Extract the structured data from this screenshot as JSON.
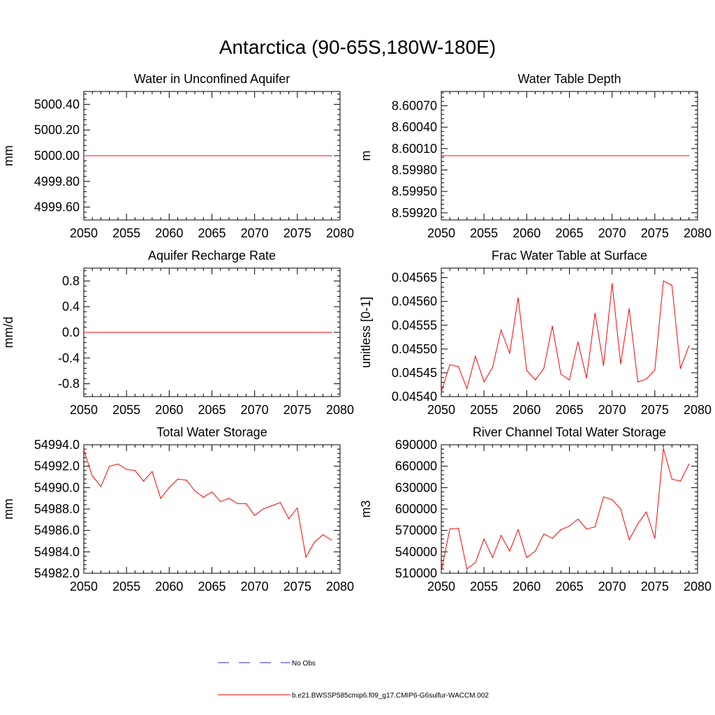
{
  "page_title": "Antarctica (90-65S,180W-180E)",
  "colors": {
    "model": "#ff0000",
    "obs": "#2a2ad0",
    "axis": "#000000"
  },
  "legend": {
    "obs_label": "No Obs",
    "model_label": "b.e21.BWSSP585cmip6.f09_g17.CMIP6-G6sulfur-WACCM.002"
  },
  "chart_data": [
    {
      "type": "line",
      "title": "Water in Unconfined Aquifer",
      "ylabel": "mm",
      "xlim": [
        2050,
        2080
      ],
      "ylim": [
        4999.5,
        5000.5
      ],
      "xticks": [
        2050,
        2055,
        2060,
        2065,
        2070,
        2075,
        2080
      ],
      "yticks": [
        4999.6,
        4999.8,
        5000.0,
        5000.2,
        5000.4
      ],
      "ytick_labels": [
        "4999.60",
        "4999.80",
        "5000.00",
        "5000.20",
        "5000.40"
      ],
      "x": [
        2050,
        2079
      ],
      "values": [
        5000.0,
        5000.0
      ]
    },
    {
      "type": "line",
      "title": "Water Table Depth",
      "ylabel": "m",
      "xlim": [
        2050,
        2080
      ],
      "ylim": [
        8.5991,
        8.6009
      ],
      "xticks": [
        2050,
        2055,
        2060,
        2065,
        2070,
        2075,
        2080
      ],
      "yticks": [
        8.5992,
        8.5995,
        8.5998,
        8.6001,
        8.6004,
        8.6007
      ],
      "ytick_labels": [
        "8.59920",
        "8.59950",
        "8.59980",
        "8.60010",
        "8.60040",
        "8.60070"
      ],
      "x": [
        2050,
        2079
      ],
      "values": [
        8.6,
        8.6
      ]
    },
    {
      "type": "line",
      "title": "Aquifer Recharge Rate",
      "ylabel": "mm/d",
      "xlim": [
        2050,
        2080
      ],
      "ylim": [
        -1.0,
        1.0
      ],
      "xticks": [
        2050,
        2055,
        2060,
        2065,
        2070,
        2075,
        2080
      ],
      "yticks": [
        -0.8,
        -0.4,
        0.0,
        0.4,
        0.8
      ],
      "ytick_labels": [
        "-0.8",
        "-0.4",
        "0.0",
        "0.4",
        "0.8"
      ],
      "x": [
        2050,
        2079
      ],
      "values": [
        0.0,
        0.0
      ]
    },
    {
      "type": "line",
      "title": "Frac Water Table at Surface",
      "ylabel": "unitless [0-1]",
      "xlim": [
        2050,
        2080
      ],
      "ylim": [
        0.0454,
        0.04567
      ],
      "xticks": [
        2050,
        2055,
        2060,
        2065,
        2070,
        2075,
        2080
      ],
      "yticks": [
        0.0454,
        0.04545,
        0.0455,
        0.04555,
        0.0456,
        0.04565
      ],
      "ytick_labels": [
        "0.04540",
        "0.04545",
        "0.04550",
        "0.04555",
        "0.04560",
        "0.04565"
      ],
      "x": [
        2050,
        2051,
        2052,
        2053,
        2054,
        2055,
        2056,
        2057,
        2058,
        2059,
        2060,
        2061,
        2062,
        2063,
        2064,
        2065,
        2066,
        2067,
        2068,
        2069,
        2070,
        2071,
        2072,
        2073,
        2074,
        2075,
        2076,
        2077,
        2078,
        2079
      ],
      "values": [
        0.04541,
        0.045467,
        0.045463,
        0.045417,
        0.045485,
        0.045431,
        0.045461,
        0.04554,
        0.045491,
        0.045608,
        0.045455,
        0.045435,
        0.045459,
        0.045548,
        0.045447,
        0.045435,
        0.045515,
        0.045439,
        0.045575,
        0.045465,
        0.045638,
        0.045469,
        0.045585,
        0.045431,
        0.045437,
        0.045456,
        0.045643,
        0.045634,
        0.045459,
        0.045507
      ]
    },
    {
      "type": "line",
      "title": "Total Water Storage",
      "ylabel": "mm",
      "xlim": [
        2050,
        2080
      ],
      "ylim": [
        54982.0,
        54994.0
      ],
      "xticks": [
        2050,
        2055,
        2060,
        2065,
        2070,
        2075,
        2080
      ],
      "yticks": [
        54982.0,
        54984.0,
        54986.0,
        54988.0,
        54990.0,
        54992.0,
        54994.0
      ],
      "ytick_labels": [
        "54982.0",
        "54984.0",
        "54986.0",
        "54988.0",
        "54990.0",
        "54992.0",
        "54994.0"
      ],
      "x": [
        2050,
        2051,
        2052,
        2053,
        2054,
        2055,
        2056,
        2057,
        2058,
        2059,
        2060,
        2061,
        2062,
        2063,
        2064,
        2065,
        2066,
        2067,
        2068,
        2069,
        2070,
        2071,
        2072,
        2073,
        2074,
        2075,
        2076,
        2077,
        2078,
        2079
      ],
      "values": [
        54993.5,
        54991.1,
        54990.1,
        54992.0,
        54992.2,
        54991.7,
        54991.6,
        54990.6,
        54991.5,
        54989.0,
        54990.0,
        54990.8,
        54990.7,
        54989.7,
        54989.1,
        54989.6,
        54988.7,
        54989.0,
        54988.5,
        54988.5,
        54987.4,
        54988.0,
        54988.3,
        54988.6,
        54987.1,
        54988.1,
        54983.5,
        54984.9,
        54985.6,
        54985.1
      ]
    },
    {
      "type": "line",
      "title": "River Channel Total Water Storage",
      "ylabel": "m3",
      "xlim": [
        2050,
        2080
      ],
      "ylim": [
        510000,
        690000
      ],
      "xticks": [
        2050,
        2055,
        2060,
        2065,
        2070,
        2075,
        2080
      ],
      "yticks": [
        510000,
        540000,
        570000,
        600000,
        630000,
        660000,
        690000
      ],
      "ytick_labels": [
        "510000",
        "540000",
        "570000",
        "600000",
        "630000",
        "660000",
        "690000"
      ],
      "x": [
        2050,
        2051,
        2052,
        2053,
        2054,
        2055,
        2056,
        2057,
        2058,
        2059,
        2060,
        2061,
        2062,
        2063,
        2064,
        2065,
        2066,
        2067,
        2068,
        2069,
        2070,
        2071,
        2072,
        2073,
        2074,
        2075,
        2076,
        2077,
        2078,
        2079
      ],
      "values": [
        513000,
        572000,
        573000,
        516000,
        525000,
        558000,
        532000,
        563000,
        541000,
        571000,
        532000,
        541000,
        565000,
        559000,
        571000,
        576000,
        586000,
        572000,
        575000,
        617000,
        613000,
        600000,
        557000,
        579000,
        596000,
        559000,
        685000,
        642000,
        639000,
        663000
      ]
    }
  ]
}
